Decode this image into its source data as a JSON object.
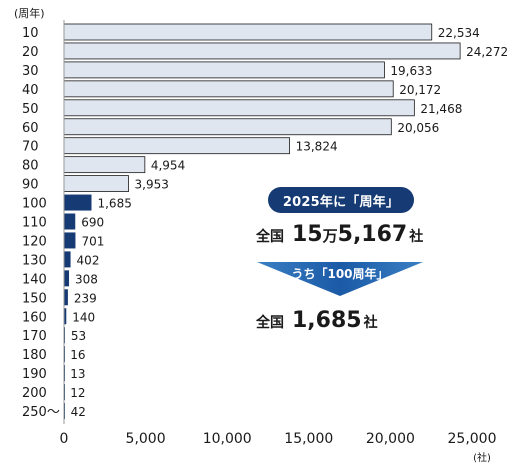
{
  "chart_data": {
    "type": "bar",
    "orientation": "horizontal",
    "y_unit_label": "(周年)",
    "x_unit_label": "(社)",
    "categories": [
      "10",
      "20",
      "30",
      "40",
      "50",
      "60",
      "70",
      "80",
      "90",
      "100",
      "110",
      "120",
      "130",
      "140",
      "150",
      "160",
      "170",
      "180",
      "190",
      "200",
      "250～"
    ],
    "values": [
      22534,
      24272,
      19633,
      20172,
      21468,
      20056,
      13824,
      4954,
      3953,
      1685,
      690,
      701,
      402,
      308,
      239,
      140,
      53,
      16,
      13,
      12,
      42
    ],
    "value_labels": [
      "22,534",
      "24,272",
      "19,633",
      "20,172",
      "21,468",
      "20,056",
      "13,824",
      "4,954",
      "3,953",
      "1,685",
      "690",
      "701",
      "402",
      "308",
      "239",
      "140",
      "53",
      "16",
      "13",
      "12",
      "42"
    ],
    "xlim": [
      0,
      25000
    ],
    "x_ticks": [
      0,
      5000,
      10000,
      15000,
      20000,
      25000
    ],
    "x_tick_labels": [
      "0",
      "5,000",
      "10,000",
      "15,000",
      "20,000",
      "25,000"
    ],
    "highlight_from_index": 9,
    "grid": false,
    "colors": {
      "light_bar": "#dfe6f0",
      "light_border": "#1a1a1a",
      "dark_bar": "#163a73",
      "axis": "#999999"
    }
  },
  "callout": {
    "pill_text": "2025年に「周年」",
    "line1": {
      "prefix": "全国",
      "num1": "15",
      "unit_man": "万",
      "num2": "5,167",
      "suffix": "社"
    },
    "arrow_text": "うち「100周年」",
    "line2": {
      "prefix": "全国",
      "num": "1,685",
      "suffix": "社"
    }
  }
}
